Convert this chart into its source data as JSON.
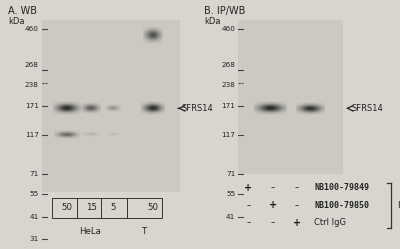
{
  "fig_bg": "#d8d5cf",
  "blot_bg_A": "#ccc9c2",
  "blot_bg_B": "#ccc9c2",
  "outer_bg": "#d8d5cf",
  "panel_A": {
    "title": "A. WB",
    "kda_label": "kDa",
    "markers": [
      460,
      268,
      238,
      171,
      117,
      71,
      55,
      41,
      31
    ],
    "band_label": "←SFRS14",
    "lanes": [
      "50",
      "15",
      "5",
      "50"
    ],
    "group_labels": [
      "HeLa",
      "T"
    ]
  },
  "panel_B": {
    "title": "B. IP/WB",
    "kda_label": "kDa",
    "markers": [
      460,
      268,
      238,
      171,
      117,
      71,
      55,
      41
    ],
    "band_label": "←SFRS14",
    "table_rows": [
      {
        "label": "NB100-79849",
        "values": [
          "+",
          "–",
          "–"
        ]
      },
      {
        "label": "NB100-79850",
        "values": [
          "–",
          "+",
          "–"
        ]
      },
      {
        "label": "Ctrl IgG",
        "values": [
          "–",
          "–",
          "+"
        ]
      }
    ],
    "ip_label": "IP"
  },
  "text_color": "#222222",
  "marker_color": "#333333",
  "tick_color": "#444444",
  "band_dark": "#1a1a1a",
  "band_med": "#4a4a4a",
  "band_light": "#7a7a7a",
  "band_xlight": "#aaaaaa",
  "spot_color": "#252525"
}
